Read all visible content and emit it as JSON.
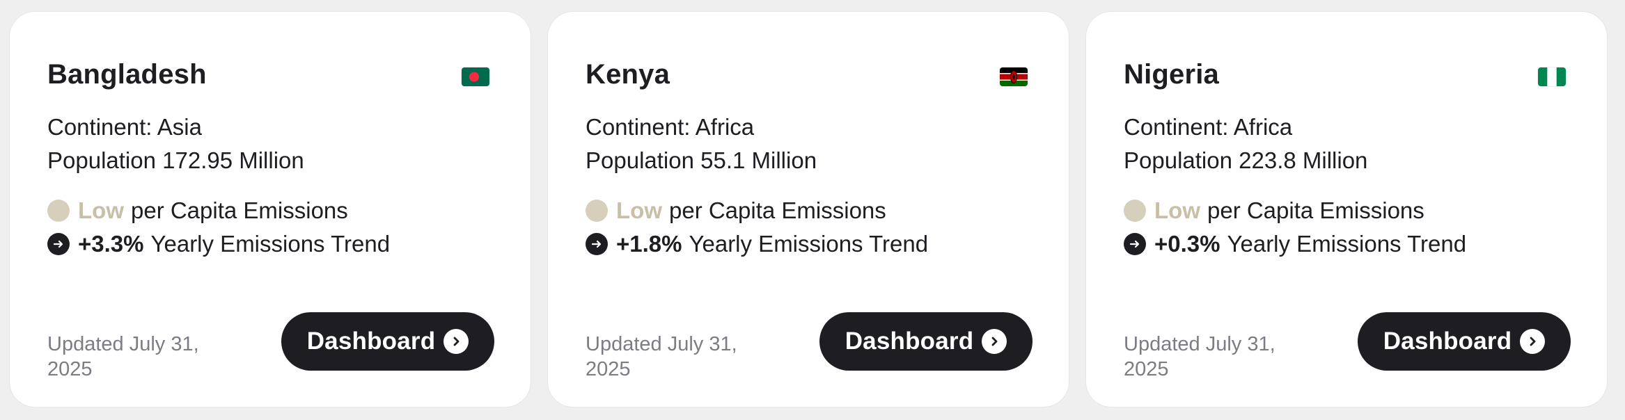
{
  "cards": [
    {
      "country": "Bangladesh",
      "flag_icon": "bangladesh-flag-icon",
      "continent_text": "Continent: Asia",
      "population_text": "Population 172.95 Million",
      "emissions_level": "Low",
      "emissions_label": "per Capita Emissions",
      "trend_value": "+3.3%",
      "trend_label": "Yearly Emissions Trend",
      "updated_text": "Updated July 31, 2025",
      "button_label": "Dashboard"
    },
    {
      "country": "Kenya",
      "flag_icon": "kenya-flag-icon",
      "continent_text": "Continent: Africa",
      "population_text": "Population 55.1 Million",
      "emissions_level": "Low",
      "emissions_label": "per Capita Emissions",
      "trend_value": "+1.8%",
      "trend_label": "Yearly Emissions Trend",
      "updated_text": "Updated July 31, 2025",
      "button_label": "Dashboard"
    },
    {
      "country": "Nigeria",
      "flag_icon": "nigeria-flag-icon",
      "continent_text": "Continent: Africa",
      "population_text": "Population 223.8 Million",
      "emissions_level": "Low",
      "emissions_label": "per Capita Emissions",
      "trend_value": "+0.3%",
      "trend_label": "Yearly Emissions Trend",
      "updated_text": "Updated July 31, 2025",
      "button_label": "Dashboard"
    }
  ],
  "colors": {
    "page_background": "#efefef",
    "card_background": "#ffffff",
    "text_primary": "#1d1d22",
    "text_muted": "#7c7c84",
    "low_level_text": "#c8bfa7",
    "low_level_dot": "#d6cfbc",
    "button_background": "#1d1d22"
  },
  "icons": {
    "emissions_level": "low-level-dot-icon",
    "trend": "arrow-right-circle-icon",
    "button": "chevron-right-circle-icon"
  }
}
